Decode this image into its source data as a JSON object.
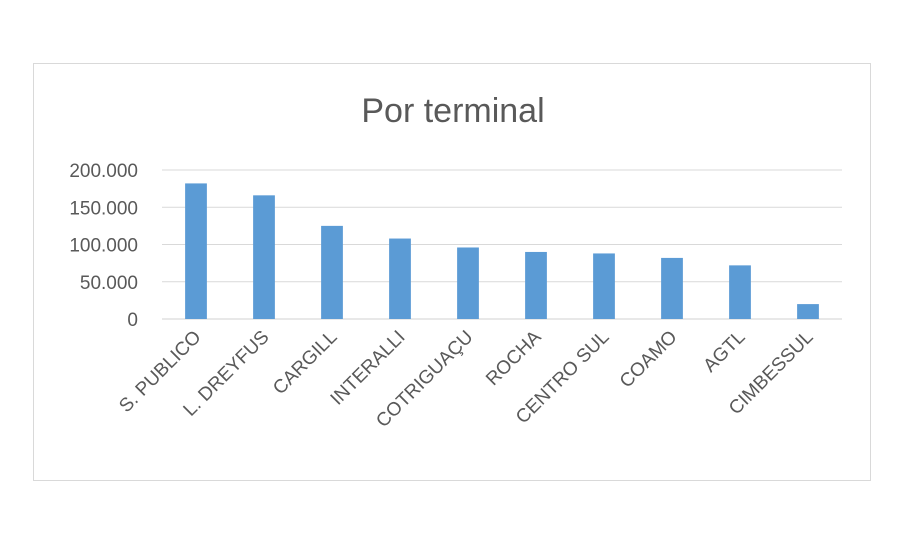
{
  "chart_data": {
    "type": "bar",
    "title": "Por terminal",
    "xlabel": "",
    "ylabel": "",
    "categories": [
      "S. PUBLICO",
      "L. DREYFUS",
      "CARGILL",
      "INTERALLI",
      "COTRIGUAÇU",
      "ROCHA",
      "CENTRO SUL",
      "COAMO",
      "AGTL",
      "CIMBESSUL"
    ],
    "values": [
      182000,
      166000,
      125000,
      108000,
      96000,
      90000,
      88000,
      82000,
      72000,
      20000
    ],
    "ylim": [
      0,
      200000
    ],
    "yticks": [
      {
        "value": 0,
        "label": "0"
      },
      {
        "value": 50000,
        "label": "50.000"
      },
      {
        "value": 100000,
        "label": "100.000"
      },
      {
        "value": 150000,
        "label": "150.000"
      },
      {
        "value": 200000,
        "label": "200.000"
      }
    ],
    "grid": true,
    "legend": "none",
    "bar_color": "#5b9bd5"
  }
}
